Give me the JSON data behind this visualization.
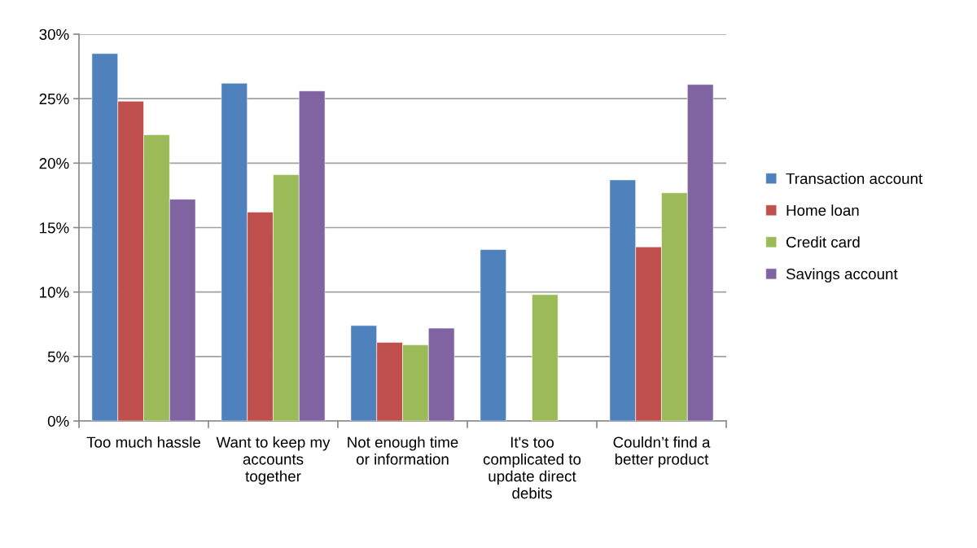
{
  "chart_data": {
    "type": "bar",
    "categories": [
      "Too much hassle",
      "Want to keep my accounts together",
      "Not enough time or information",
      "It's too complicated to update direct debits",
      "Couldn’t find a better product"
    ],
    "series": [
      {
        "name": "Transaction account",
        "color": "#4f81bd",
        "values": [
          28.5,
          26.2,
          7.4,
          13.3,
          18.7
        ]
      },
      {
        "name": "Home loan",
        "color": "#c0504d",
        "values": [
          24.8,
          16.2,
          6.1,
          null,
          13.5
        ]
      },
      {
        "name": "Credit card",
        "color": "#9bbb59",
        "values": [
          22.2,
          19.1,
          5.9,
          9.8,
          17.7
        ]
      },
      {
        "name": "Savings account",
        "color": "#8064a2",
        "values": [
          17.2,
          25.6,
          7.2,
          null,
          26.1
        ]
      }
    ],
    "ylim": [
      0,
      30
    ],
    "yticks": [
      {
        "value": 0,
        "label": "0%"
      },
      {
        "value": 5,
        "label": "5%"
      },
      {
        "value": 10,
        "label": "10%"
      },
      {
        "value": 15,
        "label": "15%"
      },
      {
        "value": 20,
        "label": "20%"
      },
      {
        "value": 25,
        "label": "25%"
      },
      {
        "value": 30,
        "label": "30%"
      }
    ],
    "grid": "y",
    "legend": "right"
  }
}
